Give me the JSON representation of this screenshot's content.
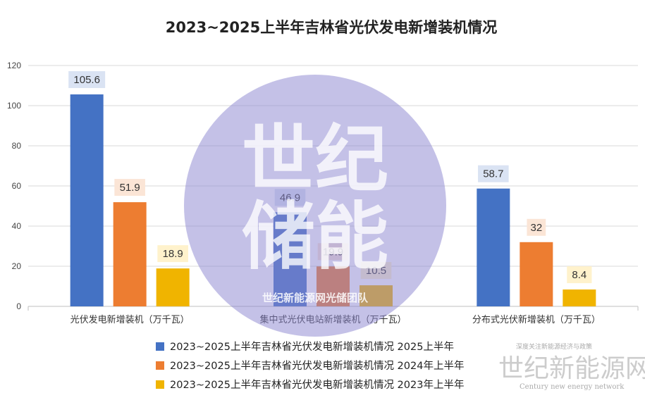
{
  "chart_data": {
    "type": "bar",
    "title": "2023~2025上半年吉林省光伏发电新增装机情况",
    "categories": [
      "光伏发电新增装机（万千瓦）",
      "集中式光伏电站新增装机（万千瓦）",
      "分布式光伏新增装机（万千瓦）"
    ],
    "series": [
      {
        "name": "2023~2025上半年吉林省光伏发电新增装机情况 2025上半年",
        "color": "#4472C4",
        "label_bg": "#DAE3F3",
        "values": [
          105.6,
          46.9,
          58.7
        ]
      },
      {
        "name": "2023~2025上半年吉林省光伏发电新增装机情况 2024年上半年",
        "color": "#ED7D31",
        "label_bg": "#FBE5D6",
        "values": [
          51.9,
          19.9,
          32
        ]
      },
      {
        "name": "2023~2025上半年吉林省光伏发电新增装机情况 2023年上半年",
        "color": "#F0B400",
        "label_bg": "#FFF2CC",
        "values": [
          18.9,
          10.5,
          8.4
        ]
      }
    ],
    "ylim": [
      0,
      120
    ],
    "yticks": [
      "0",
      "20",
      "40",
      "60",
      "80",
      "100",
      "120"
    ],
    "grid": true,
    "legend_position": "bottom"
  },
  "watermark": {
    "main_line1": "世纪",
    "main_line2": "储能",
    "sub": "世纪新能源网光储团队",
    "circle_color": "#8A84CF",
    "corner_main": "世纪新能源网",
    "corner_top": "深度关注新能源经济与政策",
    "corner_bottom": "Century new energy network"
  }
}
